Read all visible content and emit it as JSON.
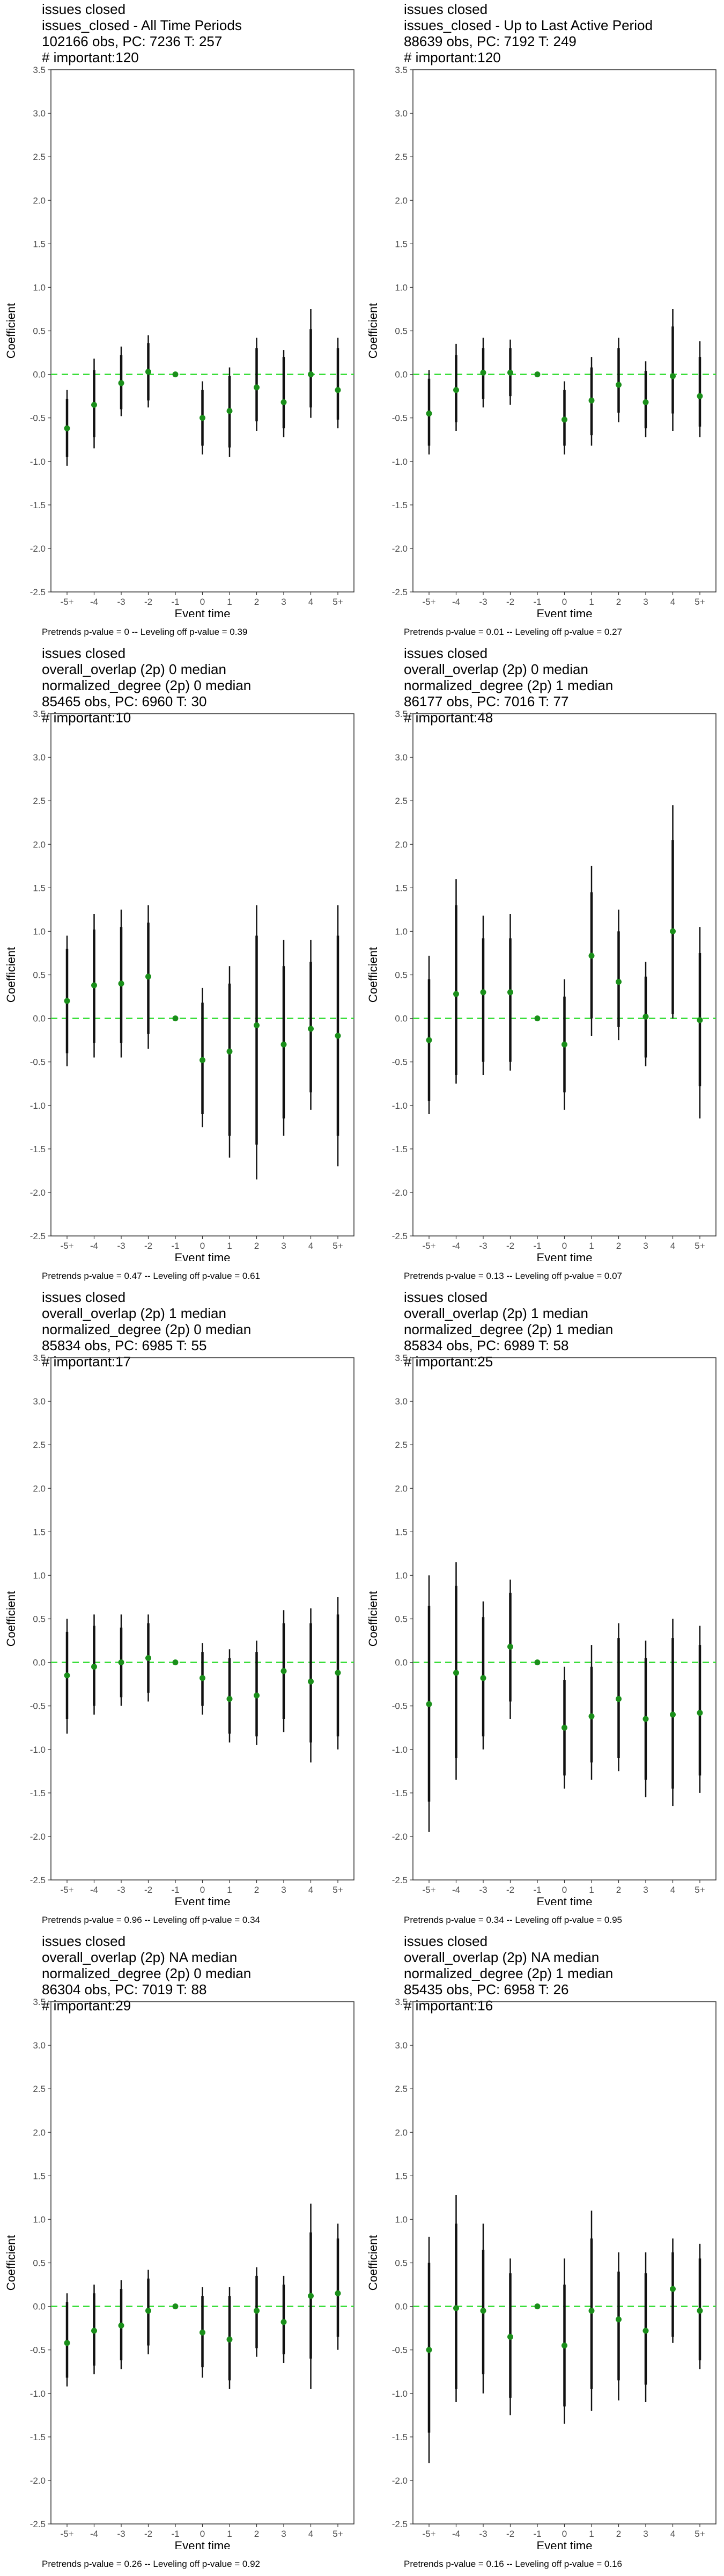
{
  "chart_data": [
    {
      "type": "scatter",
      "title_lines": [
        "issues closed",
        "issues_closed - All Time Periods",
        "102166 obs, PC: 7236 T: 257",
        "# important:120"
      ],
      "xlabel": "Event time",
      "ylabel": "Coefficient",
      "categories": [
        "-5+",
        "-4",
        "-3",
        "-2",
        "-1",
        "0",
        "1",
        "2",
        "3",
        "4",
        "5+"
      ],
      "ylim": [
        -2.5,
        3.5
      ],
      "yticks": [
        "-2.5",
        "-2.0",
        "-1.5",
        "-1.0",
        "-0.5",
        "0.0",
        "0.5",
        "1.0",
        "1.5",
        "2.0",
        "2.5",
        "3.0",
        "3.5"
      ],
      "values": [
        -0.62,
        -0.35,
        -0.1,
        0.03,
        0.0,
        -0.5,
        -0.42,
        -0.15,
        -0.32,
        0.0,
        -0.18
      ],
      "ci95": [
        [
          -1.05,
          -0.18
        ],
        [
          -0.85,
          0.18
        ],
        [
          -0.48,
          0.32
        ],
        [
          -0.38,
          0.45
        ],
        null,
        [
          -0.92,
          -0.08
        ],
        [
          -0.95,
          0.08
        ],
        [
          -0.65,
          0.42
        ],
        [
          -0.72,
          0.28
        ],
        [
          -0.5,
          0.75
        ],
        [
          -0.62,
          0.42
        ]
      ],
      "ci90": [
        [
          -0.95,
          -0.28
        ],
        [
          -0.72,
          0.05
        ],
        [
          -0.4,
          0.22
        ],
        [
          -0.3,
          0.36
        ],
        null,
        [
          -0.82,
          -0.18
        ],
        [
          -0.84,
          -0.02
        ],
        [
          -0.54,
          0.3
        ],
        [
          -0.62,
          0.2
        ],
        [
          -0.38,
          0.52
        ],
        [
          -0.52,
          0.3
        ]
      ],
      "reference_line": 0.0,
      "caption": "Pretrends p-value = 0 -- Leveling off p-value = 0.39"
    },
    {
      "type": "scatter",
      "title_lines": [
        "issues closed",
        "issues_closed - Up to Last Active Period",
        "88639 obs, PC: 7192 T: 249",
        "# important:120"
      ],
      "xlabel": "Event time",
      "ylabel": "Coefficient",
      "categories": [
        "-5+",
        "-4",
        "-3",
        "-2",
        "-1",
        "0",
        "1",
        "2",
        "3",
        "4",
        "5+"
      ],
      "ylim": [
        -2.5,
        3.5
      ],
      "yticks": [
        "-2.5",
        "-2.0",
        "-1.5",
        "-1.0",
        "-0.5",
        "0.0",
        "0.5",
        "1.0",
        "1.5",
        "2.0",
        "2.5",
        "3.0",
        "3.5"
      ],
      "values": [
        -0.45,
        -0.18,
        0.02,
        0.02,
        0.0,
        -0.52,
        -0.3,
        -0.12,
        -0.32,
        -0.02,
        -0.25
      ],
      "ci95": [
        [
          -0.92,
          0.05
        ],
        [
          -0.65,
          0.35
        ],
        [
          -0.38,
          0.42
        ],
        [
          -0.35,
          0.4
        ],
        null,
        [
          -0.92,
          -0.08
        ],
        [
          -0.82,
          0.2
        ],
        [
          -0.55,
          0.42
        ],
        [
          -0.72,
          0.15
        ],
        [
          -0.65,
          0.75
        ],
        [
          -0.72,
          0.38
        ]
      ],
      "ci90": [
        [
          -0.82,
          -0.05
        ],
        [
          -0.55,
          0.22
        ],
        [
          -0.28,
          0.3
        ],
        [
          -0.25,
          0.3
        ],
        null,
        [
          -0.82,
          -0.18
        ],
        [
          -0.7,
          0.08
        ],
        [
          -0.44,
          0.3
        ],
        [
          -0.62,
          0.04
        ],
        [
          -0.45,
          0.55
        ],
        [
          -0.6,
          0.2
        ]
      ],
      "reference_line": 0.0,
      "caption": "Pretrends p-value = 0.01 -- Leveling off p-value = 0.27"
    },
    {
      "type": "scatter",
      "title_lines": [
        "issues closed",
        "overall_overlap (2p) 0 median",
        "normalized_degree (2p) 0 median",
        "85465 obs, PC: 6960 T: 30",
        "# important:10"
      ],
      "xlabel": "Event time",
      "ylabel": "Coefficient",
      "categories": [
        "-5+",
        "-4",
        "-3",
        "-2",
        "-1",
        "0",
        "1",
        "2",
        "3",
        "4",
        "5+"
      ],
      "ylim": [
        -2.5,
        3.5
      ],
      "yticks": [
        "-2.5",
        "-2.0",
        "-1.5",
        "-1.0",
        "-0.5",
        "0.0",
        "0.5",
        "1.0",
        "1.5",
        "2.0",
        "2.5",
        "3.0",
        "3.5"
      ],
      "values": [
        0.2,
        0.38,
        0.4,
        0.48,
        0.0,
        -0.48,
        -0.38,
        -0.08,
        -0.3,
        -0.12,
        -0.2
      ],
      "ci95": [
        [
          -0.55,
          0.95
        ],
        [
          -0.45,
          1.2
        ],
        [
          -0.45,
          1.25
        ],
        [
          -0.35,
          1.3
        ],
        null,
        [
          -1.25,
          0.35
        ],
        [
          -1.6,
          0.6
        ],
        [
          -1.85,
          1.3
        ],
        [
          -1.35,
          0.9
        ],
        [
          -1.05,
          0.9
        ],
        [
          -1.7,
          1.3
        ]
      ],
      "ci90": [
        [
          -0.4,
          0.8
        ],
        [
          -0.28,
          1.02
        ],
        [
          -0.28,
          1.05
        ],
        [
          -0.18,
          1.1
        ],
        null,
        [
          -1.1,
          0.18
        ],
        [
          -1.35,
          0.4
        ],
        [
          -1.45,
          0.95
        ],
        [
          -1.15,
          0.6
        ],
        [
          -0.85,
          0.65
        ],
        [
          -1.35,
          0.95
        ]
      ],
      "reference_line": 0.0,
      "caption": "Pretrends p-value = 0.47 -- Leveling off p-value = 0.61"
    },
    {
      "type": "scatter",
      "title_lines": [
        "issues closed",
        "overall_overlap (2p) 0 median",
        "normalized_degree (2p) 1 median",
        "86177 obs, PC: 7016 T: 77",
        "# important:48"
      ],
      "xlabel": "Event time",
      "ylabel": "Coefficient",
      "categories": [
        "-5+",
        "-4",
        "-3",
        "-2",
        "-1",
        "0",
        "1",
        "2",
        "3",
        "4",
        "5+"
      ],
      "ylim": [
        -2.5,
        3.5
      ],
      "yticks": [
        "-2.5",
        "-2.0",
        "-1.5",
        "-1.0",
        "-0.5",
        "0.0",
        "0.5",
        "1.0",
        "1.5",
        "2.0",
        "2.5",
        "3.0",
        "3.5"
      ],
      "values": [
        -0.25,
        0.28,
        0.3,
        0.3,
        0.0,
        -0.3,
        0.72,
        0.42,
        0.02,
        1.0,
        -0.02
      ],
      "ci95": [
        [
          -1.1,
          0.72
        ],
        [
          -0.75,
          1.6
        ],
        [
          -0.65,
          1.18
        ],
        [
          -0.6,
          1.2
        ],
        null,
        [
          -1.05,
          0.45
        ],
        [
          -0.2,
          1.75
        ],
        [
          -0.25,
          1.25
        ],
        [
          -0.55,
          0.65
        ],
        [
          0.0,
          2.45
        ],
        [
          -1.15,
          1.05
        ]
      ],
      "ci90": [
        [
          -0.95,
          0.45
        ],
        [
          -0.65,
          1.3
        ],
        [
          -0.5,
          0.92
        ],
        [
          -0.5,
          0.92
        ],
        null,
        [
          -0.85,
          0.25
        ],
        [
          0.0,
          1.45
        ],
        [
          -0.1,
          1.0
        ],
        [
          -0.45,
          0.48
        ],
        [
          0.05,
          2.05
        ],
        [
          -0.78,
          0.75
        ]
      ],
      "reference_line": 0.0,
      "caption": "Pretrends p-value = 0.13 -- Leveling off p-value = 0.07"
    },
    {
      "type": "scatter",
      "title_lines": [
        "issues closed",
        "overall_overlap (2p) 1 median",
        "normalized_degree (2p) 0 median",
        "85834 obs, PC: 6985 T: 55",
        "# important:17"
      ],
      "xlabel": "Event time",
      "ylabel": "Coefficient",
      "categories": [
        "-5+",
        "-4",
        "-3",
        "-2",
        "-1",
        "0",
        "1",
        "2",
        "3",
        "4",
        "5+"
      ],
      "ylim": [
        -2.5,
        3.5
      ],
      "yticks": [
        "-2.5",
        "-2.0",
        "-1.5",
        "-1.0",
        "-0.5",
        "0.0",
        "0.5",
        "1.0",
        "1.5",
        "2.0",
        "2.5",
        "3.0",
        "3.5"
      ],
      "values": [
        -0.15,
        -0.05,
        0.0,
        0.05,
        0.0,
        -0.18,
        -0.42,
        -0.38,
        -0.1,
        -0.22,
        -0.12
      ],
      "ci95": [
        [
          -0.82,
          0.5
        ],
        [
          -0.6,
          0.55
        ],
        [
          -0.5,
          0.55
        ],
        [
          -0.45,
          0.55
        ],
        null,
        [
          -0.6,
          0.22
        ],
        [
          -0.92,
          0.15
        ],
        [
          -0.95,
          0.25
        ],
        [
          -0.8,
          0.6
        ],
        [
          -1.15,
          0.62
        ],
        [
          -1.0,
          0.75
        ]
      ],
      "ci90": [
        [
          -0.65,
          0.35
        ],
        [
          -0.5,
          0.42
        ],
        [
          -0.4,
          0.4
        ],
        [
          -0.35,
          0.45
        ],
        null,
        [
          -0.5,
          0.12
        ],
        [
          -0.82,
          0.05
        ],
        [
          -0.85,
          0.12
        ],
        [
          -0.65,
          0.45
        ],
        [
          -0.92,
          0.45
        ],
        [
          -0.85,
          0.55
        ]
      ],
      "reference_line": 0.0,
      "caption": "Pretrends p-value = 0.96 -- Leveling off p-value = 0.34"
    },
    {
      "type": "scatter",
      "title_lines": [
        "issues closed",
        "overall_overlap (2p) 1 median",
        "normalized_degree (2p) 1 median",
        "85834 obs, PC: 6989 T: 58",
        "# important:25"
      ],
      "xlabel": "Event time",
      "ylabel": "Coefficient",
      "categories": [
        "-5+",
        "-4",
        "-3",
        "-2",
        "-1",
        "0",
        "1",
        "2",
        "3",
        "4",
        "5+"
      ],
      "ylim": [
        -2.5,
        3.5
      ],
      "yticks": [
        "-2.5",
        "-2.0",
        "-1.5",
        "-1.0",
        "-0.5",
        "0.0",
        "0.5",
        "1.0",
        "1.5",
        "2.0",
        "2.5",
        "3.0",
        "3.5"
      ],
      "values": [
        -0.48,
        -0.12,
        -0.18,
        0.18,
        0.0,
        -0.75,
        -0.62,
        -0.42,
        -0.65,
        -0.6,
        -0.58
      ],
      "ci95": [
        [
          -1.95,
          1.0
        ],
        [
          -1.35,
          1.15
        ],
        [
          -1.0,
          0.7
        ],
        [
          -0.65,
          0.95
        ],
        null,
        [
          -1.45,
          -0.05
        ],
        [
          -1.35,
          0.2
        ],
        [
          -1.25,
          0.45
        ],
        [
          -1.55,
          0.25
        ],
        [
          -1.65,
          0.5
        ],
        [
          -1.5,
          0.42
        ]
      ],
      "ci90": [
        [
          -1.6,
          0.65
        ],
        [
          -1.1,
          0.88
        ],
        [
          -0.85,
          0.52
        ],
        [
          -0.45,
          0.8
        ],
        null,
        [
          -1.3,
          -0.2
        ],
        [
          -1.15,
          -0.05
        ],
        [
          -1.1,
          0.28
        ],
        [
          -1.35,
          0.05
        ],
        [
          -1.45,
          0.28
        ],
        [
          -1.3,
          0.2
        ]
      ],
      "reference_line": 0.0,
      "caption": "Pretrends p-value = 0.34 -- Leveling off p-value = 0.95"
    },
    {
      "type": "scatter",
      "title_lines": [
        "issues closed",
        "overall_overlap (2p) NA median",
        "normalized_degree (2p) 0 median",
        "86304 obs, PC: 7019 T: 88",
        "# important:29"
      ],
      "xlabel": "Event time",
      "ylabel": "Coefficient",
      "categories": [
        "-5+",
        "-4",
        "-3",
        "-2",
        "-1",
        "0",
        "1",
        "2",
        "3",
        "4",
        "5+"
      ],
      "ylim": [
        -2.5,
        3.5
      ],
      "yticks": [
        "-2.5",
        "-2.0",
        "-1.5",
        "-1.0",
        "-0.5",
        "0.0",
        "0.5",
        "1.0",
        "1.5",
        "2.0",
        "2.5",
        "3.0",
        "3.5"
      ],
      "values": [
        -0.42,
        -0.28,
        -0.22,
        -0.05,
        0.0,
        -0.3,
        -0.38,
        -0.05,
        -0.18,
        0.12,
        0.15
      ],
      "ci95": [
        [
          -0.92,
          0.15
        ],
        [
          -0.78,
          0.25
        ],
        [
          -0.72,
          0.3
        ],
        [
          -0.55,
          0.42
        ],
        null,
        [
          -0.82,
          0.22
        ],
        [
          -0.95,
          0.22
        ],
        [
          -0.58,
          0.45
        ],
        [
          -0.65,
          0.35
        ],
        [
          -0.95,
          1.18
        ],
        [
          -0.5,
          0.95
        ]
      ],
      "ci90": [
        [
          -0.82,
          0.05
        ],
        [
          -0.68,
          0.15
        ],
        [
          -0.62,
          0.2
        ],
        [
          -0.45,
          0.32
        ],
        null,
        [
          -0.7,
          0.12
        ],
        [
          -0.85,
          0.12
        ],
        [
          -0.48,
          0.35
        ],
        [
          -0.55,
          0.25
        ],
        [
          -0.6,
          0.85
        ],
        [
          -0.35,
          0.78
        ]
      ],
      "reference_line": 0.0,
      "caption": "Pretrends p-value = 0.26 -- Leveling off p-value = 0.92"
    },
    {
      "type": "scatter",
      "title_lines": [
        "issues closed",
        "overall_overlap (2p) NA median",
        "normalized_degree (2p) 1 median",
        "85435 obs, PC: 6958 T: 26",
        "# important:16"
      ],
      "xlabel": "Event time",
      "ylabel": "Coefficient",
      "categories": [
        "-5+",
        "-4",
        "-3",
        "-2",
        "-1",
        "0",
        "1",
        "2",
        "3",
        "4",
        "5+"
      ],
      "ylim": [
        -2.5,
        3.5
      ],
      "yticks": [
        "-2.5",
        "-2.0",
        "-1.5",
        "-1.0",
        "-0.5",
        "0.0",
        "0.5",
        "1.0",
        "1.5",
        "2.0",
        "2.5",
        "3.0",
        "3.5"
      ],
      "values": [
        -0.5,
        -0.02,
        -0.05,
        -0.35,
        0.0,
        -0.45,
        -0.05,
        -0.15,
        -0.28,
        0.2,
        -0.05
      ],
      "ci95": [
        [
          -1.8,
          0.8
        ],
        [
          -1.1,
          1.28
        ],
        [
          -1.0,
          0.95
        ],
        [
          -1.25,
          0.55
        ],
        null,
        [
          -1.35,
          0.55
        ],
        [
          -1.2,
          1.1
        ],
        [
          -1.08,
          0.62
        ],
        [
          -1.1,
          0.62
        ],
        [
          -0.42,
          0.78
        ],
        [
          -0.72,
          0.72
        ]
      ],
      "ci90": [
        [
          -1.45,
          0.5
        ],
        [
          -0.95,
          0.95
        ],
        [
          -0.78,
          0.65
        ],
        [
          -1.05,
          0.38
        ],
        null,
        [
          -1.15,
          0.25
        ],
        [
          -0.95,
          0.78
        ],
        [
          -0.85,
          0.4
        ],
        [
          -0.9,
          0.38
        ],
        [
          -0.35,
          0.62
        ],
        [
          -0.62,
          0.55
        ]
      ],
      "reference_line": 0.0,
      "caption": "Pretrends p-value = 0.16 -- Leveling off p-value = 0.16"
    }
  ],
  "colors": {
    "point": "#1a8f1a",
    "error_bar": "#111111",
    "reference_line": "#33dd33",
    "frame": "#333333",
    "tick_text": "#4d4d4d"
  }
}
